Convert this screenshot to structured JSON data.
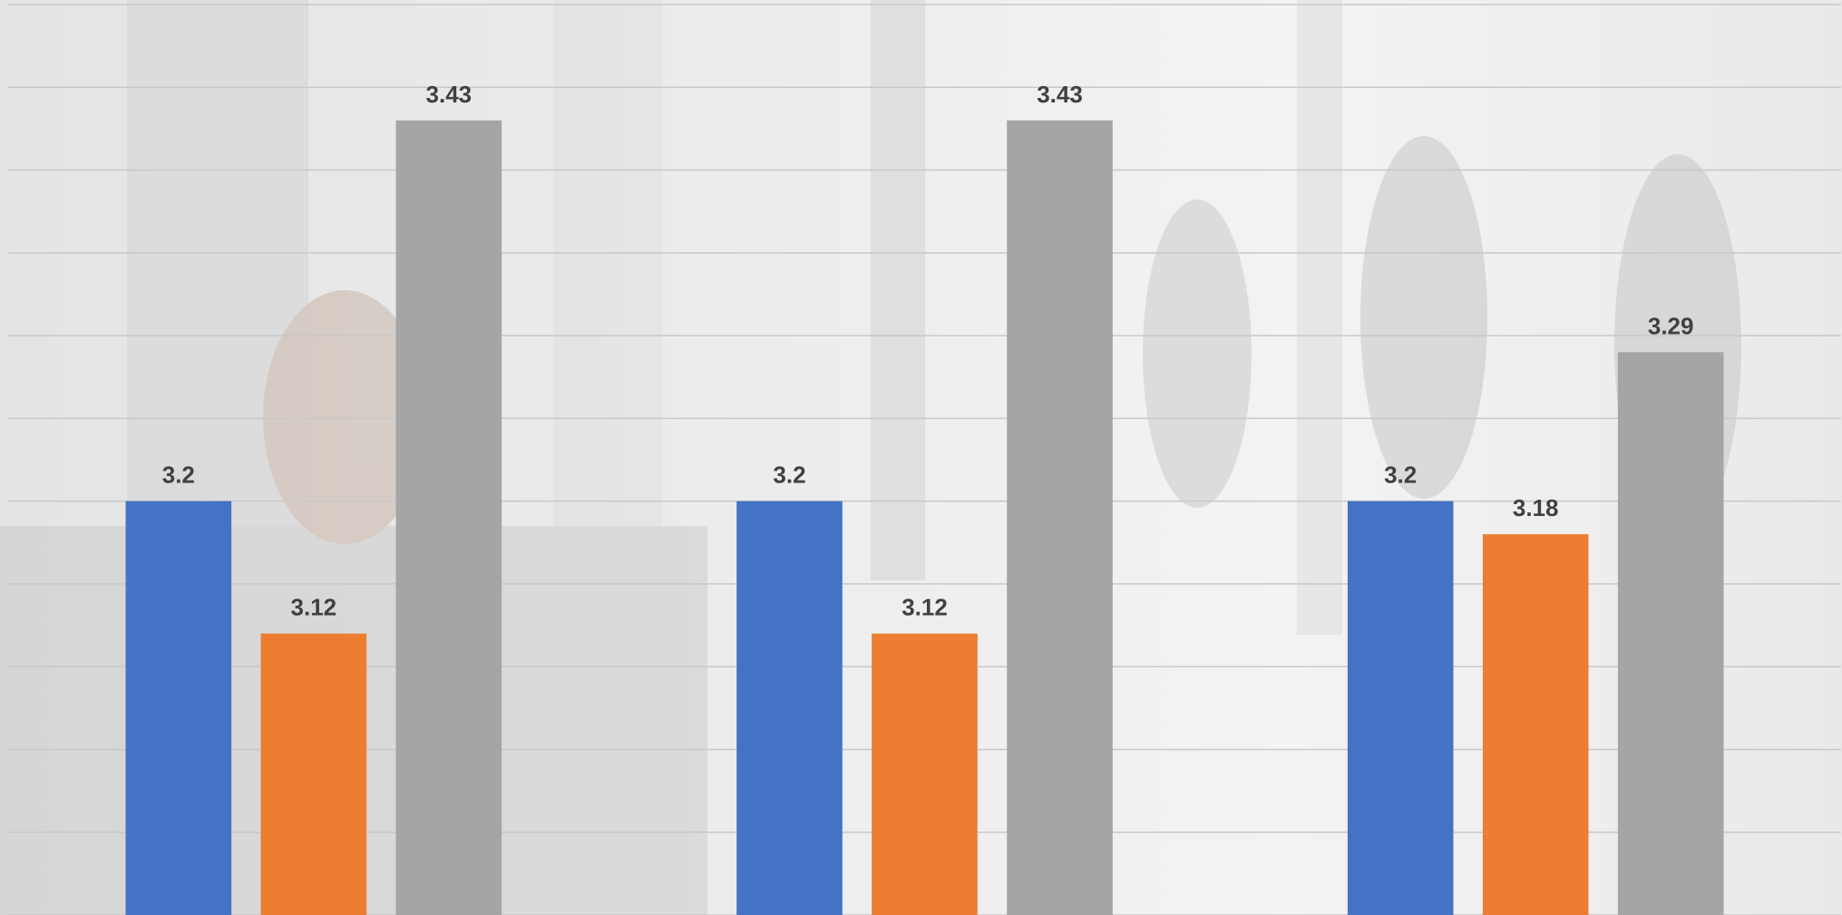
{
  "chart_data": {
    "type": "bar",
    "categories": [
      null,
      null,
      null
    ],
    "series": [
      {
        "color": "#4472c4",
        "values": [
          3.2,
          3.2,
          3.2
        ]
      },
      {
        "color": "#ed7d31",
        "values": [
          3.12,
          3.12,
          3.18
        ]
      },
      {
        "color": "#a5a5a5",
        "values": [
          3.43,
          3.43,
          3.29
        ]
      }
    ],
    "ylim": [
      2.95,
      3.5
    ],
    "yticks": [
      2.95,
      3,
      3.05,
      3.1,
      3.15,
      3.2,
      3.25,
      3.3,
      3.35,
      3.4,
      3.45,
      3.5
    ],
    "grid": true
  }
}
